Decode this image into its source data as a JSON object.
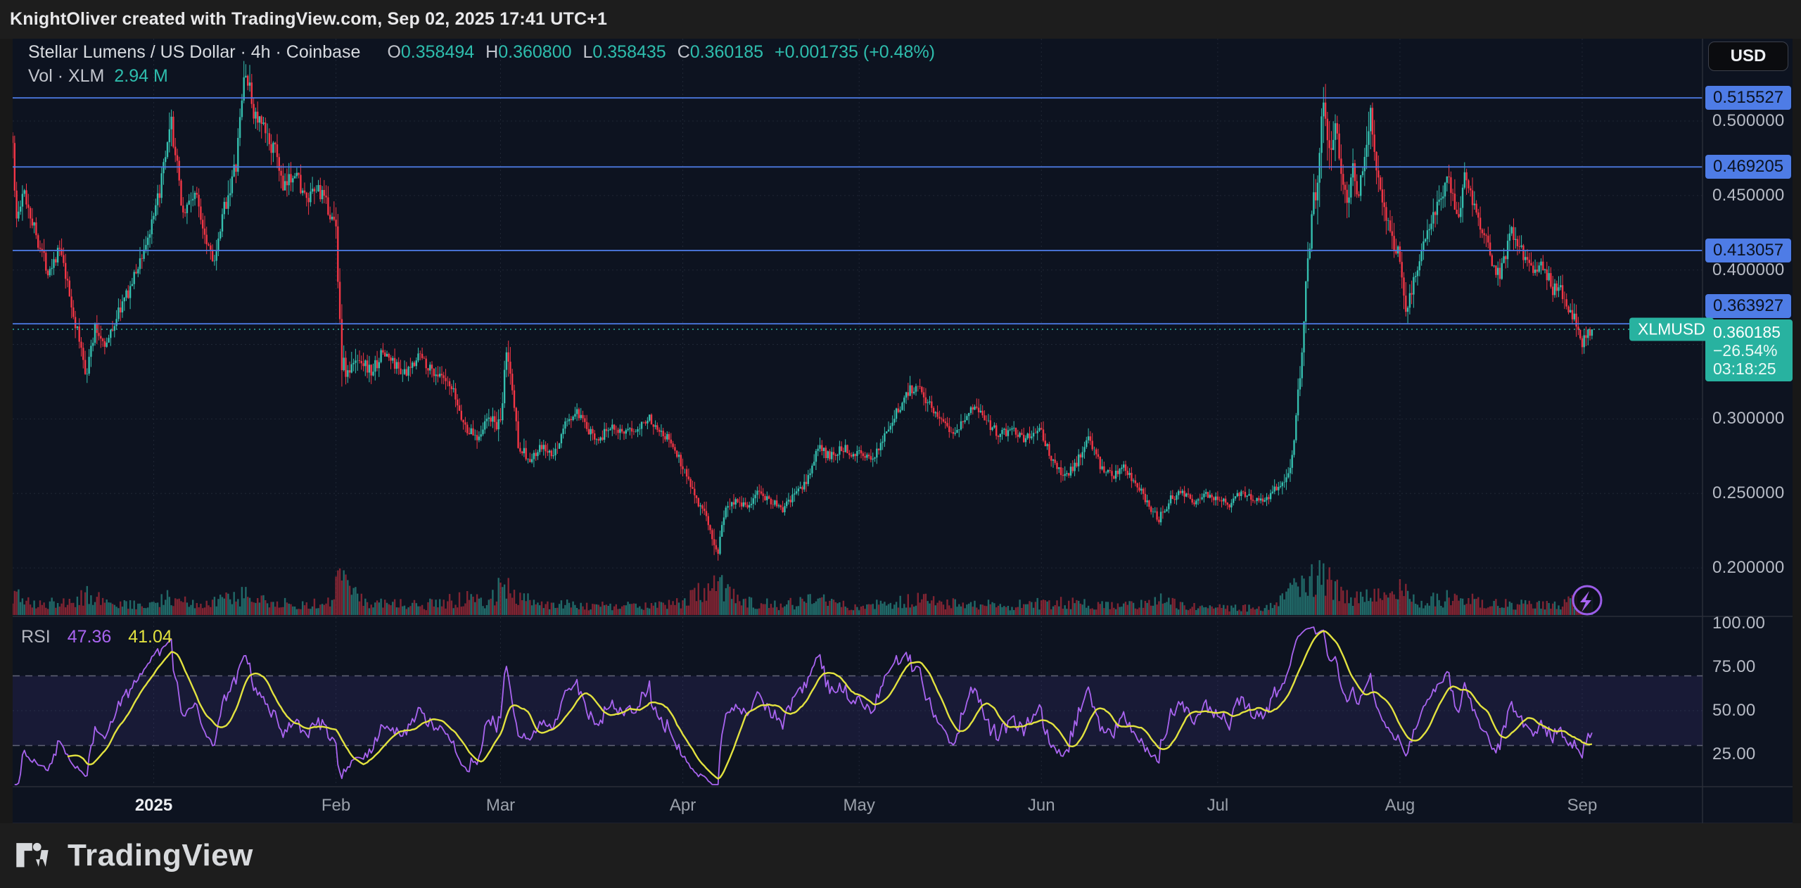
{
  "topbar": {
    "attribution": "KnightOliver created with TradingView.com, Sep 02, 2025 17:41 UTC+1"
  },
  "header": {
    "symbol_title": "Stellar Lumens / US Dollar · 4h · Coinbase",
    "ohlc": {
      "o_label": "O",
      "o": "0.358494",
      "h_label": "H",
      "h": "0.360800",
      "l_label": "L",
      "l": "0.358435",
      "c_label": "C",
      "c": "0.360185",
      "change": "+0.001735 (+0.48%)"
    },
    "volume_label": "Vol · XLM",
    "volume_value": "2.94 M"
  },
  "price_axis": {
    "currency_button": "USD",
    "labels": [
      "0.500000",
      "0.450000",
      "0.400000",
      "0.300000",
      "0.250000",
      "0.200000"
    ],
    "line_badges": [
      "0.515527",
      "0.469205",
      "0.413057",
      "0.363927"
    ],
    "last_price_badge": {
      "price": "0.360185",
      "change_pct": "−26.54%",
      "countdown": "03:18:25"
    },
    "symbol_tag": "XLMUSD"
  },
  "rsi_pane": {
    "label": "RSI",
    "value_main": "47.36",
    "value_signal": "41.04",
    "scale_labels": [
      "100.00",
      "75.00",
      "50.00",
      "25.00"
    ]
  },
  "time_axis": {
    "labels": [
      {
        "label": "2025",
        "day": 24,
        "bold": true
      },
      {
        "label": "Feb",
        "day": 55
      },
      {
        "label": "Mar",
        "day": 83
      },
      {
        "label": "Apr",
        "day": 114
      },
      {
        "label": "May",
        "day": 144
      },
      {
        "label": "Jun",
        "day": 175
      },
      {
        "label": "Jul",
        "day": 205
      },
      {
        "label": "Aug",
        "day": 236
      },
      {
        "label": "Sep",
        "day": 267
      }
    ]
  },
  "footer": {
    "brand": "TradingView"
  },
  "colors": {
    "up": "#35bfaf",
    "down": "#f23645",
    "accent_blue": "#4e7ce6",
    "accent_teal": "#28b2a0",
    "rsi_main": "#a964f0",
    "rsi_signal": "#e2e23f",
    "grid": "rgba(150,160,185,0.14)",
    "background": "#0d1320",
    "axis_text": "#b7bbc5"
  },
  "chart_data": {
    "type": "candlestick",
    "title": "Stellar Lumens / US Dollar",
    "symbol": "XLMUSD",
    "exchange": "Coinbase",
    "interval": "4h",
    "x_range_shown": [
      "2024-12-08",
      "2025-09-02"
    ],
    "days_span": 268.8,
    "y_ticks": [
      0.5,
      0.45,
      0.4,
      0.35,
      0.3,
      0.25,
      0.2
    ],
    "price_at_pane_top": 0.5553,
    "current_bar": {
      "open": 0.358494,
      "high": 0.3608,
      "low": 0.358435,
      "close": 0.360185,
      "change": 0.001735,
      "change_pct": 0.48,
      "volume": "2.94 M"
    },
    "horizontal_lines": [
      0.515527,
      0.469205,
      0.413057,
      0.363927
    ],
    "last_price": 0.360185,
    "session_change_pct": -26.54,
    "countdown": "03:18:25",
    "price_path_est": [
      [
        0,
        0.49
      ],
      [
        0.5,
        0.432
      ],
      [
        2,
        0.452
      ],
      [
        4,
        0.424
      ],
      [
        6,
        0.4
      ],
      [
        8,
        0.414
      ],
      [
        10,
        0.376
      ],
      [
        12.5,
        0.331
      ],
      [
        14,
        0.36
      ],
      [
        16,
        0.35
      ],
      [
        18,
        0.372
      ],
      [
        20,
        0.388
      ],
      [
        22,
        0.41
      ],
      [
        24,
        0.433
      ],
      [
        26,
        0.474
      ],
      [
        27,
        0.497
      ],
      [
        29,
        0.438
      ],
      [
        31,
        0.452
      ],
      [
        33,
        0.421
      ],
      [
        34.5,
        0.405
      ],
      [
        36,
        0.442
      ],
      [
        38,
        0.47
      ],
      [
        39.5,
        0.536
      ],
      [
        41,
        0.506
      ],
      [
        43,
        0.491
      ],
      [
        45,
        0.477
      ],
      [
        46,
        0.452
      ],
      [
        48,
        0.468
      ],
      [
        50,
        0.445
      ],
      [
        52,
        0.455
      ],
      [
        54,
        0.438
      ],
      [
        55,
        0.428
      ],
      [
        56,
        0.338
      ],
      [
        57,
        0.33
      ],
      [
        59,
        0.342
      ],
      [
        61,
        0.331
      ],
      [
        63,
        0.345
      ],
      [
        65,
        0.337
      ],
      [
        67,
        0.329
      ],
      [
        69,
        0.344
      ],
      [
        71,
        0.334
      ],
      [
        73,
        0.327
      ],
      [
        75,
        0.317
      ],
      [
        77,
        0.294
      ],
      [
        79,
        0.288
      ],
      [
        81,
        0.301
      ],
      [
        83,
        0.294
      ],
      [
        84,
        0.347
      ],
      [
        85,
        0.32
      ],
      [
        86,
        0.284
      ],
      [
        88,
        0.271
      ],
      [
        90,
        0.281
      ],
      [
        92,
        0.274
      ],
      [
        94,
        0.297
      ],
      [
        96,
        0.304
      ],
      [
        98,
        0.291
      ],
      [
        100,
        0.287
      ],
      [
        102,
        0.297
      ],
      [
        104,
        0.289
      ],
      [
        106,
        0.294
      ],
      [
        108,
        0.301
      ],
      [
        110,
        0.294
      ],
      [
        112,
        0.284
      ],
      [
        114,
        0.268
      ],
      [
        116,
        0.251
      ],
      [
        118,
        0.231
      ],
      [
        120,
        0.211
      ],
      [
        121,
        0.237
      ],
      [
        123,
        0.247
      ],
      [
        125,
        0.241
      ],
      [
        127,
        0.251
      ],
      [
        129,
        0.245
      ],
      [
        131,
        0.239
      ],
      [
        133,
        0.249
      ],
      [
        135,
        0.257
      ],
      [
        137,
        0.281
      ],
      [
        139,
        0.274
      ],
      [
        141,
        0.281
      ],
      [
        143,
        0.277
      ],
      [
        144,
        0.279
      ],
      [
        146,
        0.271
      ],
      [
        148,
        0.287
      ],
      [
        150,
        0.301
      ],
      [
        152,
        0.317
      ],
      [
        154,
        0.324
      ],
      [
        156,
        0.309
      ],
      [
        158,
        0.301
      ],
      [
        160,
        0.291
      ],
      [
        162,
        0.301
      ],
      [
        164,
        0.309
      ],
      [
        166,
        0.297
      ],
      [
        168,
        0.289
      ],
      [
        170,
        0.294
      ],
      [
        172,
        0.287
      ],
      [
        174,
        0.291
      ],
      [
        175,
        0.291
      ],
      [
        177,
        0.271
      ],
      [
        179,
        0.261
      ],
      [
        181,
        0.271
      ],
      [
        183,
        0.287
      ],
      [
        185,
        0.269
      ],
      [
        187,
        0.261
      ],
      [
        189,
        0.267
      ],
      [
        191,
        0.257
      ],
      [
        193,
        0.244
      ],
      [
        195,
        0.233
      ],
      [
        197,
        0.247
      ],
      [
        199,
        0.251
      ],
      [
        201,
        0.245
      ],
      [
        203,
        0.249
      ],
      [
        205,
        0.247
      ],
      [
        207,
        0.243
      ],
      [
        209,
        0.251
      ],
      [
        211,
        0.247
      ],
      [
        213,
        0.244
      ],
      [
        215,
        0.255
      ],
      [
        217,
        0.263
      ],
      [
        218,
        0.286
      ],
      [
        219,
        0.33
      ],
      [
        220,
        0.392
      ],
      [
        221,
        0.438
      ],
      [
        222,
        0.462
      ],
      [
        223,
        0.519
      ],
      [
        224,
        0.478
      ],
      [
        225,
        0.501
      ],
      [
        226,
        0.469
      ],
      [
        227,
        0.447
      ],
      [
        228,
        0.467
      ],
      [
        229,
        0.451
      ],
      [
        230,
        0.477
      ],
      [
        231,
        0.51
      ],
      [
        232,
        0.467
      ],
      [
        233,
        0.444
      ],
      [
        234,
        0.431
      ],
      [
        235,
        0.419
      ],
      [
        236,
        0.407
      ],
      [
        237,
        0.371
      ],
      [
        238,
        0.387
      ],
      [
        239,
        0.401
      ],
      [
        240,
        0.417
      ],
      [
        242,
        0.437
      ],
      [
        244,
        0.461
      ],
      [
        245,
        0.447
      ],
      [
        246,
        0.439
      ],
      [
        247,
        0.464
      ],
      [
        248,
        0.451
      ],
      [
        249,
        0.437
      ],
      [
        250,
        0.427
      ],
      [
        251,
        0.414
      ],
      [
        252,
        0.401
      ],
      [
        253,
        0.397
      ],
      [
        254,
        0.411
      ],
      [
        255,
        0.427
      ],
      [
        256,
        0.419
      ],
      [
        257,
        0.411
      ],
      [
        258,
        0.404
      ],
      [
        259,
        0.397
      ],
      [
        260,
        0.407
      ],
      [
        261,
        0.397
      ],
      [
        262,
        0.387
      ],
      [
        263,
        0.391
      ],
      [
        264,
        0.381
      ],
      [
        265,
        0.371
      ],
      [
        266,
        0.364
      ],
      [
        267,
        0.351
      ],
      [
        268,
        0.356
      ],
      [
        268.8,
        0.360185
      ]
    ],
    "volume_profile_est": [
      [
        0,
        0.55
      ],
      [
        2,
        0.4
      ],
      [
        6,
        0.33
      ],
      [
        9,
        0.3
      ],
      [
        12,
        0.5
      ],
      [
        13,
        0.55
      ],
      [
        16,
        0.3
      ],
      [
        20,
        0.28
      ],
      [
        24,
        0.32
      ],
      [
        27,
        0.45
      ],
      [
        30,
        0.3
      ],
      [
        34,
        0.32
      ],
      [
        40,
        0.5
      ],
      [
        44,
        0.3
      ],
      [
        48,
        0.28
      ],
      [
        54,
        0.3
      ],
      [
        56,
        1.0
      ],
      [
        57,
        0.7
      ],
      [
        59,
        0.4
      ],
      [
        63,
        0.3
      ],
      [
        70,
        0.25
      ],
      [
        77,
        0.42
      ],
      [
        81,
        0.3
      ],
      [
        84,
        0.9
      ],
      [
        85,
        0.6
      ],
      [
        88,
        0.38
      ],
      [
        92,
        0.3
      ],
      [
        98,
        0.24
      ],
      [
        104,
        0.22
      ],
      [
        110,
        0.24
      ],
      [
        114,
        0.32
      ],
      [
        120,
        0.85
      ],
      [
        121,
        0.6
      ],
      [
        124,
        0.35
      ],
      [
        130,
        0.25
      ],
      [
        137,
        0.38
      ],
      [
        141,
        0.26
      ],
      [
        144,
        0.22
      ],
      [
        150,
        0.3
      ],
      [
        154,
        0.42
      ],
      [
        158,
        0.28
      ],
      [
        164,
        0.3
      ],
      [
        168,
        0.22
      ],
      [
        175,
        0.3
      ],
      [
        179,
        0.32
      ],
      [
        183,
        0.28
      ],
      [
        189,
        0.22
      ],
      [
        195,
        0.38
      ],
      [
        199,
        0.26
      ],
      [
        203,
        0.2
      ],
      [
        208,
        0.18
      ],
      [
        213,
        0.18
      ],
      [
        217,
        0.5
      ],
      [
        219,
        0.75
      ],
      [
        221,
        0.9
      ],
      [
        223,
        1.0
      ],
      [
        225,
        0.65
      ],
      [
        227,
        0.5
      ],
      [
        229,
        0.45
      ],
      [
        231,
        0.6
      ],
      [
        233,
        0.45
      ],
      [
        236,
        0.6
      ],
      [
        237,
        0.55
      ],
      [
        240,
        0.35
      ],
      [
        244,
        0.42
      ],
      [
        247,
        0.4
      ],
      [
        250,
        0.3
      ],
      [
        255,
        0.28
      ],
      [
        258,
        0.24
      ],
      [
        261,
        0.26
      ],
      [
        264,
        0.3
      ],
      [
        267,
        0.38
      ],
      [
        268.8,
        0.32
      ]
    ],
    "rsi": {
      "length": 14,
      "last": 47.36,
      "signal_last": 41.04,
      "bands": [
        70,
        30
      ],
      "scale": [
        100,
        75,
        50,
        25
      ]
    }
  }
}
